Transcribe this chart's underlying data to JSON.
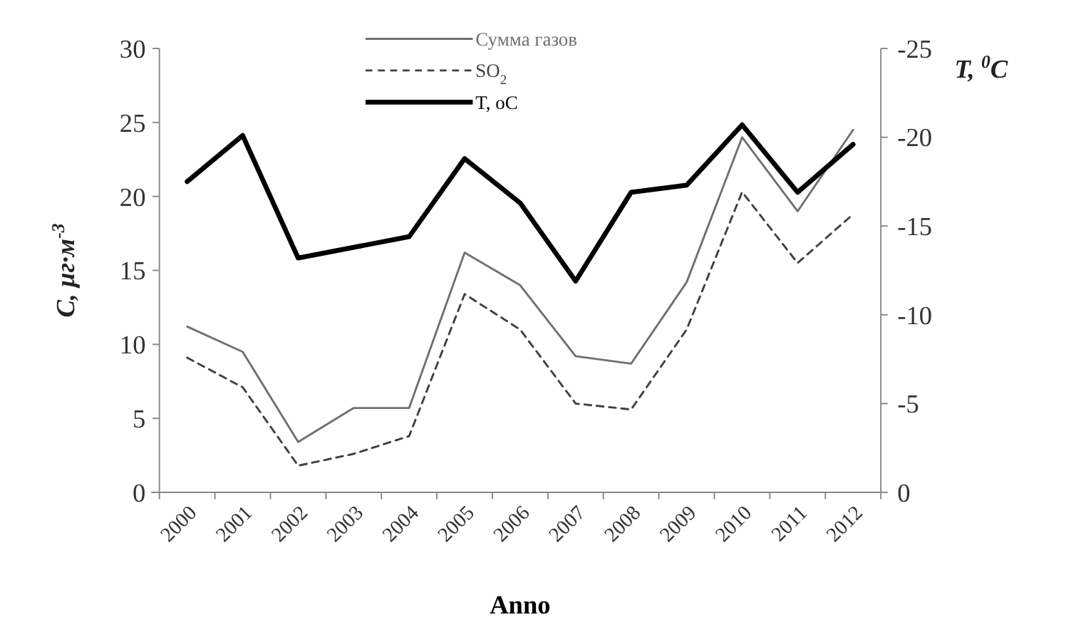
{
  "chart_data": {
    "type": "line",
    "xlabel": "Anno",
    "ylabel": "C, μг·м$^{-3}$",
    "y2label": "T, $^{0}$C",
    "categories": [
      "2000",
      "2001",
      "2002",
      "2003",
      "2004",
      "2005",
      "2006",
      "2007",
      "2008",
      "2009",
      "2010",
      "2011",
      "2012"
    ],
    "series": [
      {
        "name": "Сумма газов",
        "color": "#707070",
        "line_style": "solid",
        "values": [
          11.2,
          9.5,
          3.4,
          5.7,
          5.7,
          16.2,
          14.0,
          9.2,
          8.7,
          14.2,
          24.0,
          19.0,
          24.5
        ]
      },
      {
        "name": "SO$_{2}$",
        "color": "#404040",
        "line_style": "dashed",
        "values": [
          9.1,
          7.1,
          1.8,
          2.6,
          3.8,
          13.4,
          11.0,
          6.0,
          5.6,
          11.0,
          20.3,
          15.5,
          18.8
        ]
      },
      {
        "name": "T, oC",
        "color": "#000000",
        "line_style": "solid",
        "axis": "y2",
        "values": [
          -17.5,
          -20.1,
          -13.2,
          -13.8,
          -14.4,
          -18.8,
          -16.3,
          -11.9,
          -16.9,
          -17.3,
          -20.7,
          -16.9,
          -19.6
        ]
      }
    ],
    "ylim": [
      0,
      30
    ],
    "yticks": [
      0,
      5,
      10,
      15,
      20,
      25,
      30
    ],
    "y2lim": [
      0,
      -25
    ],
    "y2ticks": [
      0,
      -5,
      -10,
      -15,
      -20,
      -25
    ],
    "legend": "top",
    "grid": false,
    "marker": "none"
  }
}
